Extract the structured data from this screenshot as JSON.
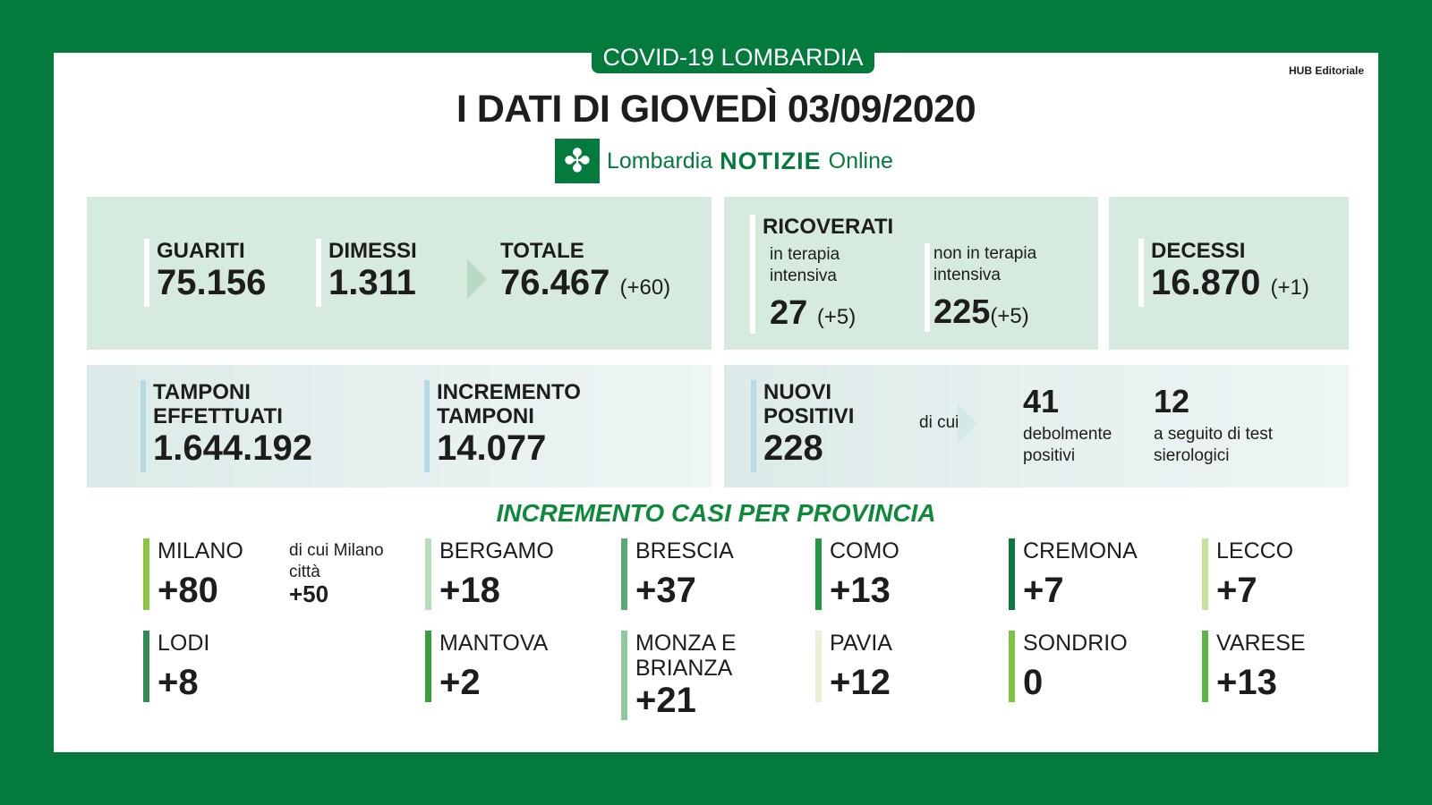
{
  "header": {
    "tab": "COVID-19 LOMBARDIA",
    "title": "I DATI DI GIOVEDÌ 03/09/2020",
    "credit": "HUB Editoriale",
    "logo": {
      "part1": "Lombardia",
      "part2": "NOTIZIE",
      "part3": "Online"
    }
  },
  "colors": {
    "brand": "#047a3c",
    "box": "#d6eadd"
  },
  "guariti": {
    "guariti_label": "GUARITI",
    "guariti_value": "75.156",
    "dimessi_label": "DIMESSI",
    "dimessi_value": "1.311",
    "totale_label": "TOTALE",
    "totale_value": "76.467",
    "totale_delta": "(+60)"
  },
  "ricoverati": {
    "label": "RICOVERATI",
    "ti_label": "in terapia intensiva",
    "ti_value": "27",
    "ti_delta": "(+5)",
    "nti_label": "non in terapia intensiva",
    "nti_value": "225",
    "nti_delta": "(+5)"
  },
  "decessi": {
    "label": "DECESSI",
    "value": "16.870",
    "delta": "(+1)"
  },
  "tamponi": {
    "label": "TAMPONI EFFETTUATI",
    "value": "1.644.192",
    "inc_label": "INCREMENTO TAMPONI",
    "inc_value": "14.077"
  },
  "positivi": {
    "label": "NUOVI POSITIVI",
    "value": "228",
    "dicui": "di cui",
    "deb_value": "41",
    "deb_label": "debolmente positivi",
    "sier_value": "12",
    "sier_label": "a seguito di test sierologici"
  },
  "province": {
    "heading": "INCREMENTO CASI PER PROVINCIA",
    "milano_dicui": "di cui Milano città",
    "milano_citta": "+50",
    "items": [
      {
        "name": "MILANO",
        "value": "+80",
        "color": "#8cc63f"
      },
      {
        "name": "BERGAMO",
        "value": "+18",
        "color": "#b9dcb9"
      },
      {
        "name": "BRESCIA",
        "value": "+37",
        "color": "#5aab73"
      },
      {
        "name": "COMO",
        "value": "+13",
        "color": "#1f9a3c"
      },
      {
        "name": "CREMONA",
        "value": "+7",
        "color": "#0b7a3e"
      },
      {
        "name": "LECCO",
        "value": "+7",
        "color": "#c5e29a"
      },
      {
        "name": "LODI",
        "value": "+8",
        "color": "#2e8b57"
      },
      {
        "name": "MANTOVA",
        "value": "+2",
        "color": "#3a9e3a"
      },
      {
        "name": "MONZA E BRIANZA",
        "value": "+21",
        "color": "#8dc9a0"
      },
      {
        "name": "PAVIA",
        "value": "+12",
        "color": "#e6f2d5"
      },
      {
        "name": "SONDRIO",
        "value": "0",
        "color": "#7dc243"
      },
      {
        "name": "VARESE",
        "value": "+13",
        "color": "#5fb546"
      }
    ]
  }
}
